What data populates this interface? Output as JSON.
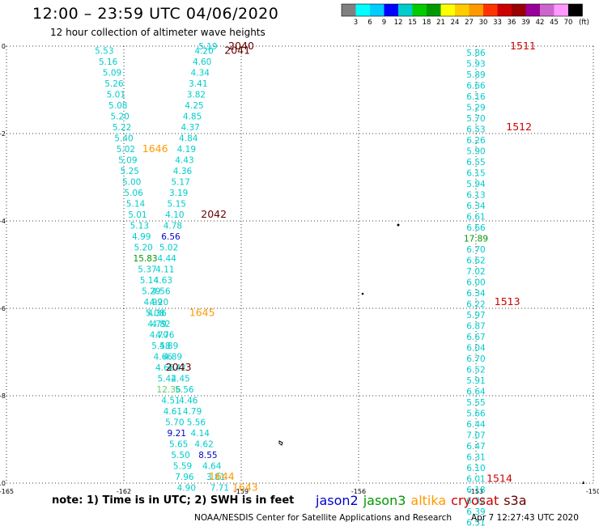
{
  "header": {
    "title": "12:00 – 23:59 UTC 04/06/2020",
    "subtitle": "12 hour collection of altimeter wave heights"
  },
  "footer": {
    "note": "note: 1) Time is in UTC; 2) SWH is in feet",
    "satellites": [
      {
        "name": "jason2",
        "color": "#0000cc"
      },
      {
        "name": "jason3",
        "color": "#009900"
      },
      {
        "name": "altika",
        "color": "#ff9900"
      },
      {
        "name": "cryosat",
        "color": "#cc0000"
      },
      {
        "name": "s3a",
        "color": "#660000"
      }
    ],
    "credit": "NOAA/NESDIS Center for Satellite Applications and Research",
    "timestamp": "Apr  7 12:27:43 UTC 2020"
  },
  "chart_data": {
    "type": "scatter",
    "xlim": [
      -165,
      -150
    ],
    "ylim": [
      -10,
      0
    ],
    "x_ticks": [
      -165,
      -162,
      -159,
      -156,
      -153,
      -150
    ],
    "x_tick_labels": [
      "-165",
      "-162",
      "-159",
      "-156",
      "-153",
      "-150"
    ],
    "y_ticks": [
      0,
      -2,
      -4,
      -6,
      -8,
      -10
    ],
    "y_tick_labels": [
      "0",
      "-2",
      "-4",
      "-6",
      "-8",
      "-10"
    ],
    "grid": true,
    "colorbar": {
      "unit": "(ft)",
      "labels": [
        "3",
        "6",
        "9",
        "12",
        "15",
        "18",
        "21",
        "24",
        "27",
        "30",
        "33",
        "36",
        "39",
        "42",
        "45",
        "70"
      ],
      "colors": [
        "#808080",
        "#00ffff",
        "#00ccff",
        "#0000ff",
        "#00cccc",
        "#00cc00",
        "#009900",
        "#ffff00",
        "#ffcc00",
        "#ff9900",
        "#ff3300",
        "#cc0000",
        "#990000",
        "#990099",
        "#cc66cc",
        "#ff99ff",
        "#000000"
      ]
    },
    "value_points": [
      {
        "x": -162.5,
        "y": -0.1,
        "v": "5.53",
        "c": "#00cccc"
      },
      {
        "x": -162.4,
        "y": -0.35,
        "v": "5.16",
        "c": "#00cccc"
      },
      {
        "x": -162.3,
        "y": -0.6,
        "v": "5.09",
        "c": "#00cccc"
      },
      {
        "x": -162.25,
        "y": -0.85,
        "v": "5.26",
        "c": "#00cccc"
      },
      {
        "x": -162.2,
        "y": -1.1,
        "v": "5.01",
        "c": "#00cccc"
      },
      {
        "x": -162.15,
        "y": -1.35,
        "v": "5.08",
        "c": "#00cccc"
      },
      {
        "x": -162.1,
        "y": -1.6,
        "v": "5.20",
        "c": "#00cccc"
      },
      {
        "x": -162.05,
        "y": -1.85,
        "v": "5.22",
        "c": "#00cccc"
      },
      {
        "x": -162.0,
        "y": -2.1,
        "v": "5.40",
        "c": "#00cccc"
      },
      {
        "x": -161.95,
        "y": -2.35,
        "v": "5.02",
        "c": "#00cccc"
      },
      {
        "x": -161.9,
        "y": -2.6,
        "v": "5.09",
        "c": "#00cccc"
      },
      {
        "x": -161.85,
        "y": -2.85,
        "v": "5.25",
        "c": "#00cccc"
      },
      {
        "x": -161.8,
        "y": -3.1,
        "v": "5.00",
        "c": "#00cccc"
      },
      {
        "x": -161.75,
        "y": -3.35,
        "v": "5.06",
        "c": "#00cccc"
      },
      {
        "x": -161.7,
        "y": -3.6,
        "v": "5.14",
        "c": "#00cccc"
      },
      {
        "x": -161.65,
        "y": -3.85,
        "v": "5.01",
        "c": "#00cccc"
      },
      {
        "x": -161.6,
        "y": -4.1,
        "v": "5.13",
        "c": "#00cccc"
      },
      {
        "x": -161.55,
        "y": -4.35,
        "v": "4.99",
        "c": "#00cccc"
      },
      {
        "x": -161.5,
        "y": -4.6,
        "v": "5.20",
        "c": "#00cccc"
      },
      {
        "x": -161.45,
        "y": -4.85,
        "v": "15.83",
        "c": "#009900"
      },
      {
        "x": -161.4,
        "y": -5.1,
        "v": "5.37",
        "c": "#00cccc"
      },
      {
        "x": -161.35,
        "y": -5.35,
        "v": "5.14",
        "c": "#00cccc"
      },
      {
        "x": -161.3,
        "y": -5.6,
        "v": "5.29",
        "c": "#00cccc"
      },
      {
        "x": -161.25,
        "y": -5.85,
        "v": "4.99",
        "c": "#00cccc"
      },
      {
        "x": -161.2,
        "y": -6.1,
        "v": "5.08",
        "c": "#00cccc"
      },
      {
        "x": -161.15,
        "y": -6.35,
        "v": "4.79",
        "c": "#00cccc"
      },
      {
        "x": -161.1,
        "y": -6.6,
        "v": "4.70",
        "c": "#00cccc"
      },
      {
        "x": -161.05,
        "y": -6.85,
        "v": "5.58",
        "c": "#00cccc"
      },
      {
        "x": -161.0,
        "y": -7.1,
        "v": "4.66",
        "c": "#00cccc"
      },
      {
        "x": -160.95,
        "y": -7.35,
        "v": "4.68",
        "c": "#00cccc"
      },
      {
        "x": -160.9,
        "y": -7.6,
        "v": "5.42",
        "c": "#00cccc"
      },
      {
        "x": -160.85,
        "y": -7.85,
        "v": "12.36",
        "c": "#66cc66"
      },
      {
        "x": -160.8,
        "y": -8.1,
        "v": "4.51",
        "c": "#00cccc"
      },
      {
        "x": -160.75,
        "y": -8.35,
        "v": "4.61",
        "c": "#00cccc"
      },
      {
        "x": -160.7,
        "y": -8.6,
        "v": "5.70",
        "c": "#00cccc"
      },
      {
        "x": -160.65,
        "y": -8.85,
        "v": "9.21",
        "c": "#0000cc"
      },
      {
        "x": -160.6,
        "y": -9.1,
        "v": "5.65",
        "c": "#00cccc"
      },
      {
        "x": -160.55,
        "y": -9.35,
        "v": "5.50",
        "c": "#00cccc"
      },
      {
        "x": -160.5,
        "y": -9.6,
        "v": "5.59",
        "c": "#00cccc"
      },
      {
        "x": -160.45,
        "y": -9.85,
        "v": "7.96",
        "c": "#00cccc"
      },
      {
        "x": -160.4,
        "y": -10.1,
        "v": "4.90",
        "c": "#00cccc"
      },
      {
        "x": -159.85,
        "y": 0.0,
        "v": "5.19",
        "c": "#00cccc"
      },
      {
        "x": -159.95,
        "y": -0.1,
        "v": "4.20",
        "c": "#00cccc"
      },
      {
        "x": -160.0,
        "y": -0.35,
        "v": "4.60",
        "c": "#00cccc"
      },
      {
        "x": -160.05,
        "y": -0.6,
        "v": "4.34",
        "c": "#00cccc"
      },
      {
        "x": -160.1,
        "y": -0.85,
        "v": "3.41",
        "c": "#00cccc"
      },
      {
        "x": -160.15,
        "y": -1.1,
        "v": "3.82",
        "c": "#00cccc"
      },
      {
        "x": -160.2,
        "y": -1.35,
        "v": "4.25",
        "c": "#00cccc"
      },
      {
        "x": -160.25,
        "y": -1.6,
        "v": "4.85",
        "c": "#00cccc"
      },
      {
        "x": -160.3,
        "y": -1.85,
        "v": "4.37",
        "c": "#00cccc"
      },
      {
        "x": -160.35,
        "y": -2.1,
        "v": "4.84",
        "c": "#00cccc"
      },
      {
        "x": -160.4,
        "y": -2.35,
        "v": "4.19",
        "c": "#00cccc"
      },
      {
        "x": -160.45,
        "y": -2.6,
        "v": "4.43",
        "c": "#00cccc"
      },
      {
        "x": -160.5,
        "y": -2.85,
        "v": "4.36",
        "c": "#00cccc"
      },
      {
        "x": -160.55,
        "y": -3.1,
        "v": "5.17",
        "c": "#00cccc"
      },
      {
        "x": -160.6,
        "y": -3.35,
        "v": "3.19",
        "c": "#00cccc"
      },
      {
        "x": -160.65,
        "y": -3.6,
        "v": "5.15",
        "c": "#00cccc"
      },
      {
        "x": -160.7,
        "y": -3.85,
        "v": "4.10",
        "c": "#00cccc"
      },
      {
        "x": -160.75,
        "y": -4.1,
        "v": "4.78",
        "c": "#00cccc"
      },
      {
        "x": -160.8,
        "y": -4.35,
        "v": "6.56",
        "c": "#0000cc"
      },
      {
        "x": -160.85,
        "y": -4.6,
        "v": "5.02",
        "c": "#00cccc"
      },
      {
        "x": -160.9,
        "y": -4.85,
        "v": "4.44",
        "c": "#00cccc"
      },
      {
        "x": -160.95,
        "y": -5.1,
        "v": "4.11",
        "c": "#00cccc"
      },
      {
        "x": -161.0,
        "y": -5.35,
        "v": "4.63",
        "c": "#00cccc"
      },
      {
        "x": -161.05,
        "y": -5.6,
        "v": "4.56",
        "c": "#00cccc"
      },
      {
        "x": -161.1,
        "y": -5.85,
        "v": "4.20",
        "c": "#00cccc"
      },
      {
        "x": -161.15,
        "y": -6.1,
        "v": "4.36",
        "c": "#00cccc"
      },
      {
        "x": -161.05,
        "y": -6.35,
        "v": "4.82",
        "c": "#00cccc"
      },
      {
        "x": -160.95,
        "y": -6.6,
        "v": "4.76",
        "c": "#00cccc"
      },
      {
        "x": -160.85,
        "y": -6.85,
        "v": "4.89",
        "c": "#00cccc"
      },
      {
        "x": -160.75,
        "y": -7.1,
        "v": "4.89",
        "c": "#00cccc"
      },
      {
        "x": -160.65,
        "y": -7.35,
        "v": "4.42",
        "c": "#00cccc"
      },
      {
        "x": -160.55,
        "y": -7.6,
        "v": "4.45",
        "c": "#00cccc"
      },
      {
        "x": -160.45,
        "y": -7.85,
        "v": "5.56",
        "c": "#00cccc"
      },
      {
        "x": -160.35,
        "y": -8.1,
        "v": "4.46",
        "c": "#00cccc"
      },
      {
        "x": -160.25,
        "y": -8.35,
        "v": "4.79",
        "c": "#00cccc"
      },
      {
        "x": -160.15,
        "y": -8.6,
        "v": "5.56",
        "c": "#00cccc"
      },
      {
        "x": -160.05,
        "y": -8.85,
        "v": "4.14",
        "c": "#00cccc"
      },
      {
        "x": -159.95,
        "y": -9.1,
        "v": "4.62",
        "c": "#00cccc"
      },
      {
        "x": -159.85,
        "y": -9.35,
        "v": "8.55",
        "c": "#0000cc"
      },
      {
        "x": -159.75,
        "y": -9.6,
        "v": "4.64",
        "c": "#00cccc"
      },
      {
        "x": -159.65,
        "y": -9.85,
        "v": "3.81",
        "c": "#00cccc"
      },
      {
        "x": -159.55,
        "y": -10.1,
        "v": "7.71",
        "c": "#00cccc"
      },
      {
        "x": -153.0,
        "y": -0.15,
        "v": "5.86",
        "c": "#00cccc"
      },
      {
        "x": -153.0,
        "y": -0.4,
        "v": "5.93",
        "c": "#00cccc"
      },
      {
        "x": -153.0,
        "y": -0.65,
        "v": "5.89",
        "c": "#00cccc"
      },
      {
        "x": -153.0,
        "y": -0.9,
        "v": "6.66",
        "c": "#00cccc"
      },
      {
        "x": -153.0,
        "y": -1.15,
        "v": "6.16",
        "c": "#00cccc"
      },
      {
        "x": -153.0,
        "y": -1.4,
        "v": "5.29",
        "c": "#00cccc"
      },
      {
        "x": -153.0,
        "y": -1.65,
        "v": "5.70",
        "c": "#00cccc"
      },
      {
        "x": -153.0,
        "y": -1.9,
        "v": "6.53",
        "c": "#00cccc"
      },
      {
        "x": -153.0,
        "y": -2.15,
        "v": "6.26",
        "c": "#00cccc"
      },
      {
        "x": -153.0,
        "y": -2.4,
        "v": "5.90",
        "c": "#00cccc"
      },
      {
        "x": -153.0,
        "y": -2.65,
        "v": "6.55",
        "c": "#00cccc"
      },
      {
        "x": -153.0,
        "y": -2.9,
        "v": "6.15",
        "c": "#00cccc"
      },
      {
        "x": -153.0,
        "y": -3.15,
        "v": "5.94",
        "c": "#00cccc"
      },
      {
        "x": -153.0,
        "y": -3.4,
        "v": "6.13",
        "c": "#00cccc"
      },
      {
        "x": -153.0,
        "y": -3.65,
        "v": "6.34",
        "c": "#00cccc"
      },
      {
        "x": -153.0,
        "y": -3.9,
        "v": "6.61",
        "c": "#00cccc"
      },
      {
        "x": -153.0,
        "y": -4.15,
        "v": "6.66",
        "c": "#00cccc"
      },
      {
        "x": -153.0,
        "y": -4.4,
        "v": "17.89",
        "c": "#009900"
      },
      {
        "x": -153.0,
        "y": -4.65,
        "v": "6.70",
        "c": "#00cccc"
      },
      {
        "x": -153.0,
        "y": -4.9,
        "v": "6.62",
        "c": "#00cccc"
      },
      {
        "x": -153.0,
        "y": -5.15,
        "v": "7.02",
        "c": "#00cccc"
      },
      {
        "x": -153.0,
        "y": -5.4,
        "v": "6.00",
        "c": "#00cccc"
      },
      {
        "x": -153.0,
        "y": -5.65,
        "v": "6.34",
        "c": "#00cccc"
      },
      {
        "x": -153.0,
        "y": -5.9,
        "v": "6.22",
        "c": "#00cccc"
      },
      {
        "x": -153.0,
        "y": -6.15,
        "v": "5.97",
        "c": "#00cccc"
      },
      {
        "x": -153.0,
        "y": -6.4,
        "v": "6.87",
        "c": "#00cccc"
      },
      {
        "x": -153.0,
        "y": -6.65,
        "v": "6.67",
        "c": "#00cccc"
      },
      {
        "x": -153.0,
        "y": -6.9,
        "v": "6.04",
        "c": "#00cccc"
      },
      {
        "x": -153.0,
        "y": -7.15,
        "v": "6.70",
        "c": "#00cccc"
      },
      {
        "x": -153.0,
        "y": -7.4,
        "v": "6.52",
        "c": "#00cccc"
      },
      {
        "x": -153.0,
        "y": -7.65,
        "v": "5.91",
        "c": "#00cccc"
      },
      {
        "x": -153.0,
        "y": -7.9,
        "v": "6.64",
        "c": "#00cccc"
      },
      {
        "x": -153.0,
        "y": -8.15,
        "v": "5.55",
        "c": "#00cccc"
      },
      {
        "x": -153.0,
        "y": -8.4,
        "v": "5.66",
        "c": "#00cccc"
      },
      {
        "x": -153.0,
        "y": -8.65,
        "v": "6.44",
        "c": "#00cccc"
      },
      {
        "x": -153.0,
        "y": -8.9,
        "v": "7.07",
        "c": "#00cccc"
      },
      {
        "x": -153.0,
        "y": -9.15,
        "v": "6.47",
        "c": "#00cccc"
      },
      {
        "x": -153.0,
        "y": -9.4,
        "v": "6.31",
        "c": "#00cccc"
      },
      {
        "x": -153.0,
        "y": -9.65,
        "v": "6.10",
        "c": "#00cccc"
      },
      {
        "x": -153.0,
        "y": -9.9,
        "v": "6.01",
        "c": "#00cccc"
      },
      {
        "x": -153.0,
        "y": -10.15,
        "v": "6.18",
        "c": "#00cccc"
      },
      {
        "x": -153.0,
        "y": -10.4,
        "v": "6.32",
        "c": "#00cccc"
      },
      {
        "x": -153.0,
        "y": -10.65,
        "v": "6.39",
        "c": "#00cccc"
      },
      {
        "x": -153.0,
        "y": -10.9,
        "v": "6.51",
        "c": "#00cccc"
      }
    ],
    "pass_labels": [
      {
        "x": -159.0,
        "y": 0.0,
        "t": "2040",
        "c": "#660000"
      },
      {
        "x": -159.1,
        "y": -0.1,
        "t": "2041",
        "c": "#660000"
      },
      {
        "x": -161.2,
        "y": -2.35,
        "t": "1646",
        "c": "#ff9900"
      },
      {
        "x": -159.7,
        "y": -3.85,
        "t": "2042",
        "c": "#660000"
      },
      {
        "x": -160.0,
        "y": -6.1,
        "t": "1645",
        "c": "#ff9900"
      },
      {
        "x": -160.6,
        "y": -7.35,
        "t": "2043",
        "c": "#660000"
      },
      {
        "x": -159.5,
        "y": -9.85,
        "t": "1644",
        "c": "#ff9900"
      },
      {
        "x": -158.9,
        "y": -10.1,
        "t": "1643",
        "c": "#ff9900"
      },
      {
        "x": -151.8,
        "y": 0.0,
        "t": "1511",
        "c": "#cc0000"
      },
      {
        "x": -151.9,
        "y": -1.85,
        "t": "1512",
        "c": "#cc0000"
      },
      {
        "x": -152.2,
        "y": -5.85,
        "t": "1513",
        "c": "#cc0000"
      },
      {
        "x": -152.4,
        "y": -9.9,
        "t": "1514",
        "c": "#cc0000"
      }
    ]
  }
}
